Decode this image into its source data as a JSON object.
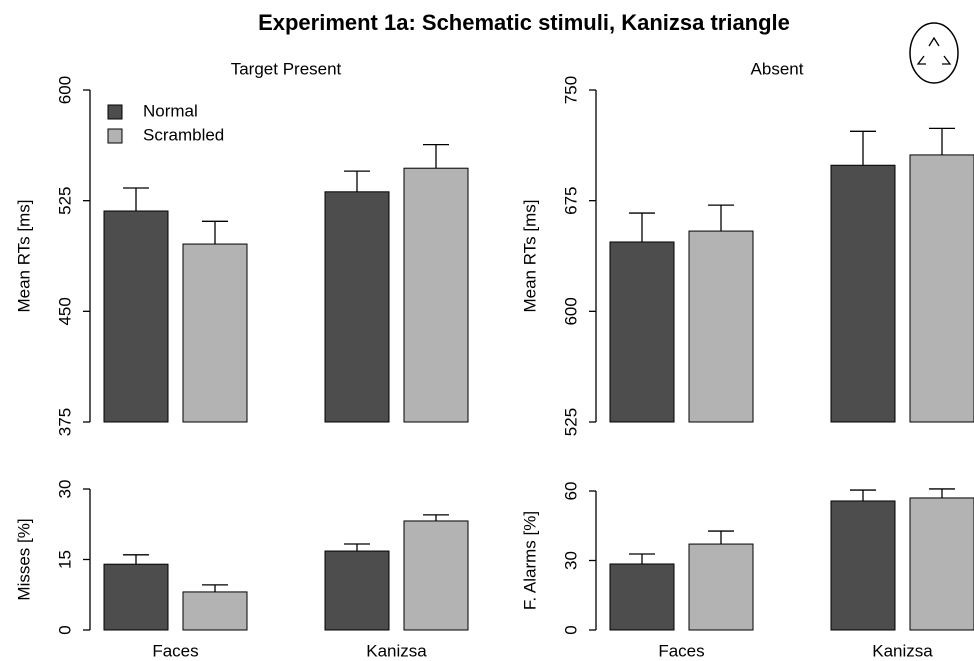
{
  "title": "Experiment 1a: Schematic stimuli, Kanizsa triangle",
  "chart_data": [
    {
      "type": "bar",
      "title": "Target Present",
      "y_label": "Mean RTs [ms]",
      "categories": [
        null,
        null
      ],
      "ylim": [
        375,
        600
      ],
      "yticks": [
        375,
        450,
        525,
        600
      ],
      "legend": "top-left",
      "series": [
        {
          "name": "Normal",
          "color": "#4d4d4d",
          "values": [
            518,
            531
          ],
          "errors": [
            15.6,
            14
          ]
        },
        {
          "name": "Scrambled",
          "color": "#b3b3b3",
          "values": [
            495.6,
            547
          ],
          "errors": [
            15.4,
            16
          ]
        }
      ]
    },
    {
      "type": "bar",
      "title": "Absent",
      "y_label": "Mean RTs [ms]",
      "categories": [
        null,
        null
      ],
      "ylim": [
        525,
        750
      ],
      "yticks": [
        525,
        600,
        675,
        750
      ],
      "series": [
        {
          "color": "#4d4d4d",
          "values": [
            647,
            699
          ],
          "errors": [
            19.6,
            23
          ]
        },
        {
          "color": "#b3b3b3",
          "values": [
            654.4,
            706
          ],
          "errors": [
            17.6,
            18
          ]
        }
      ]
    },
    {
      "type": "bar",
      "y_label": "Misses [%]",
      "categories": [
        "Faces",
        "Kanizsa"
      ],
      "ylim": [
        0,
        30
      ],
      "yticks": [
        0,
        15,
        30
      ],
      "series": [
        {
          "color": "#4d4d4d",
          "values": [
            14,
            16.8
          ],
          "errors": [
            2,
            1.5
          ]
        },
        {
          "color": "#b3b3b3",
          "values": [
            8.1,
            23.2
          ],
          "errors": [
            1.5,
            1.3
          ]
        }
      ]
    },
    {
      "type": "bar",
      "y_label": "F. Alarms [%]",
      "categories": [
        "Faces",
        "Kanizsa"
      ],
      "ylim": [
        0,
        60
      ],
      "yticks": [
        0,
        30,
        60
      ],
      "series": [
        {
          "color": "#4d4d4d",
          "values": [
            28.5,
            55.7
          ],
          "errors": [
            4.3,
            4.7
          ]
        },
        {
          "color": "#b3b3b3",
          "values": [
            37.1,
            57
          ],
          "errors": [
            5.6,
            3.9
          ]
        }
      ]
    }
  ]
}
